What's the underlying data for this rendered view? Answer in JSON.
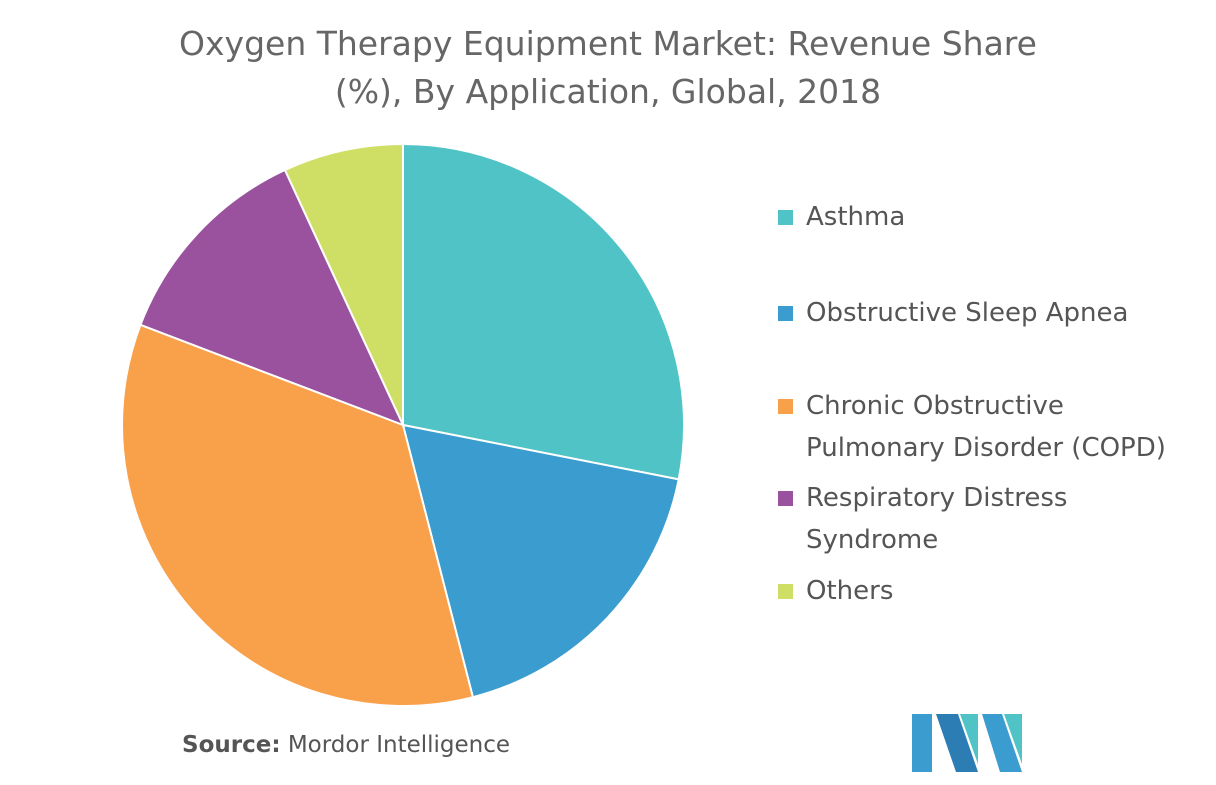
{
  "title_line1": "Oxygen Therapy Equipment Market: Revenue Share",
  "title_line2": "(%), By Application, Global, 2018",
  "source_label": "Source:",
  "source_value": "Mordor Intelligence",
  "chart_data": {
    "type": "pie",
    "title": "Oxygen Therapy Equipment Market: Revenue Share (%), By Application, Global, 2018",
    "legend_position": "right",
    "start_angle_deg": 0,
    "direction": "clockwise",
    "slices": [
      {
        "label": "Asthma",
        "value": 28.1,
        "color": "#4fc3c6"
      },
      {
        "label": "Obstructive Sleep Apnea",
        "value": 17.9,
        "color": "#3b9ccf"
      },
      {
        "label": "Chronic Obstructive Pulmonary Disorder (COPD)",
        "value": 34.8,
        "color": "#f9a04a"
      },
      {
        "label": "Respiratory Distress Syndrome",
        "value": 12.3,
        "color": "#9a529e"
      },
      {
        "label": "Others",
        "value": 6.9,
        "color": "#cfdf66"
      }
    ]
  },
  "legend": [
    {
      "lines": [
        "Asthma"
      ],
      "color": "#4fc3c6"
    },
    {
      "lines": [
        "Obstructive Sleep Apnea"
      ],
      "color": "#3b9ccf"
    },
    {
      "lines": [
        "Chronic Obstructive",
        "Pulmonary Disorder (COPD)"
      ],
      "color": "#f9a04a"
    },
    {
      "lines": [
        "Respiratory Distress",
        "Syndrome"
      ],
      "color": "#9a529e"
    },
    {
      "lines": [
        "Others"
      ],
      "color": "#cfdf66"
    }
  ],
  "logo": {
    "colors": [
      "#3b9ccf",
      "#4fc3c6",
      "#2b7db3"
    ]
  }
}
